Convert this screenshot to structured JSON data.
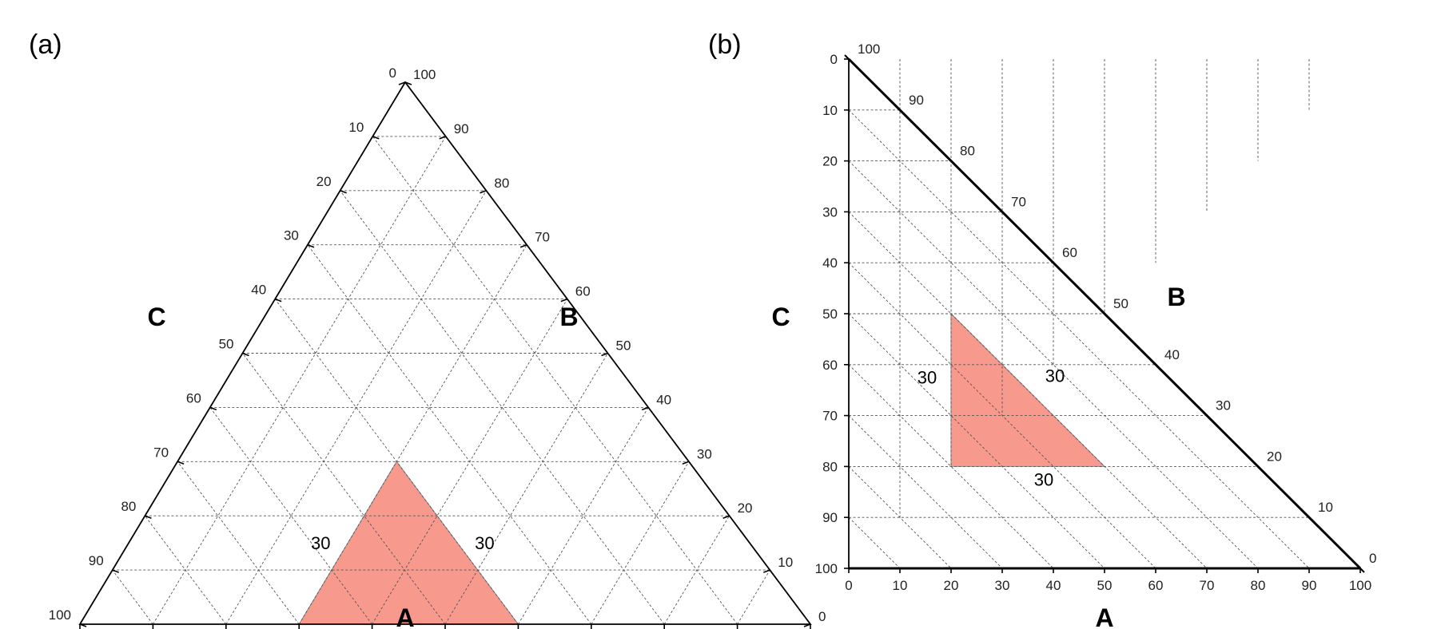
{
  "colors": {
    "region_fill": "#f8998e",
    "region_stroke": "#8a8a8a",
    "frame": "#000000",
    "grid": "#555555"
  },
  "chart_data": [
    {
      "type": "ternary",
      "panel_label": "(a)",
      "axes": {
        "A": "A",
        "B": "B",
        "C": "C"
      },
      "range": [
        0,
        100
      ],
      "grid_step": 10,
      "ticks": [
        0,
        10,
        20,
        30,
        40,
        50,
        60,
        70,
        80,
        90,
        100
      ],
      "grid": true,
      "region": {
        "vertices": [
          {
            "A": 30,
            "B": 0,
            "C": 70
          },
          {
            "A": 60,
            "B": 0,
            "C": 40
          },
          {
            "A": 30,
            "B": 30,
            "C": 40
          }
        ],
        "edge_labels": [
          "30",
          "30",
          "30"
        ]
      }
    },
    {
      "type": "ternary-right",
      "panel_label": "(b)",
      "axes": {
        "A": "A",
        "B": "B",
        "C": "C"
      },
      "range": [
        0,
        100
      ],
      "grid_step": 10,
      "ticks": [
        0,
        10,
        20,
        30,
        40,
        50,
        60,
        70,
        80,
        90,
        100
      ],
      "grid": true,
      "region": {
        "vertices": [
          {
            "A": 20,
            "C": 50
          },
          {
            "A": 20,
            "C": 80
          },
          {
            "A": 50,
            "C": 80
          }
        ],
        "edge_labels": [
          "30",
          "30",
          "30"
        ]
      }
    }
  ]
}
